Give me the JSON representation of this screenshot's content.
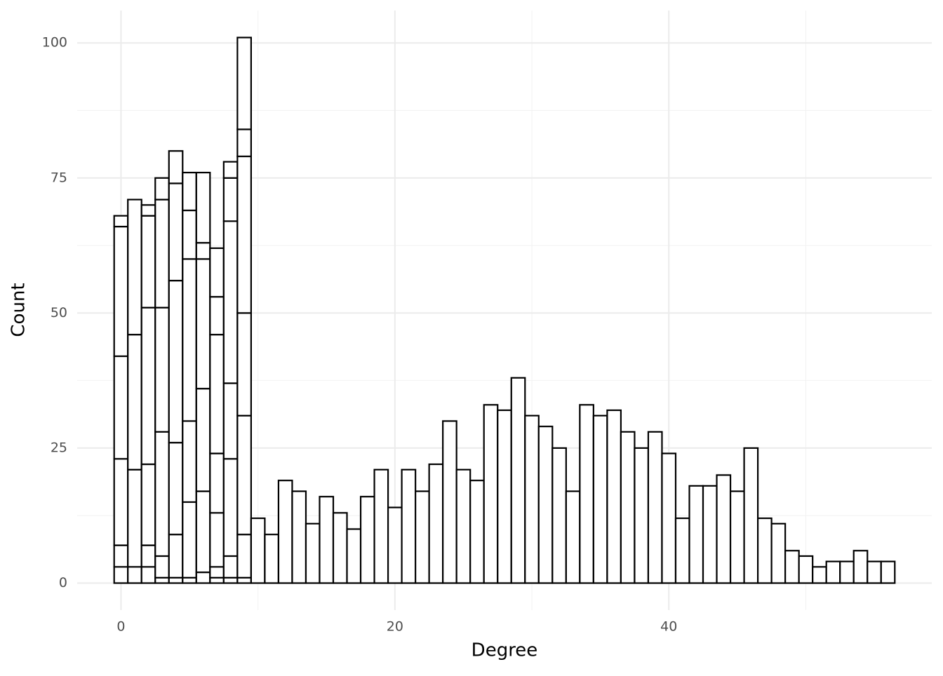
{
  "chart_data": {
    "type": "histogram",
    "x_label": "Degree",
    "y_label": "Count",
    "bins": [
      -0.5,
      0.5,
      1.5,
      2.5,
      3.5,
      4.5,
      5.5,
      6.5,
      7.5,
      8.5,
      9.5,
      10.5,
      11.5,
      12.5,
      13.5,
      14.5,
      15.5,
      16.5,
      17.5,
      18.5,
      19.5,
      20.5,
      21.5,
      22.5,
      23.5,
      24.5,
      25.5,
      26.5,
      27.5,
      28.5,
      29.5,
      30.5,
      31.5,
      32.5,
      33.5,
      34.5,
      35.5,
      36.5,
      37.5,
      38.5,
      39.5,
      40.5,
      41.5,
      42.5,
      43.5,
      44.5,
      45.5,
      46.5,
      47.5,
      48.5,
      49.5,
      50.5,
      51.5,
      52.5,
      53.5,
      54.5,
      55.5,
      56.5
    ],
    "counts": [
      [
        3,
        4,
        16,
        19,
        24,
        2
      ],
      [
        3,
        18,
        25,
        25
      ],
      [
        3,
        4,
        15,
        29,
        17,
        2
      ],
      [
        1,
        4,
        23,
        23,
        20,
        4
      ],
      [
        1,
        8,
        17,
        30,
        18,
        6
      ],
      [
        1,
        14,
        15,
        30,
        9,
        7
      ],
      [
        2,
        15,
        19,
        24,
        3,
        13
      ],
      [
        1,
        2,
        10,
        11,
        22,
        7,
        9
      ],
      [
        1,
        4,
        18,
        14,
        30,
        8,
        3
      ],
      [
        1,
        8,
        22,
        19,
        29,
        5,
        17
      ],
      [
        12
      ],
      [
        9
      ],
      [
        19
      ],
      [
        17
      ],
      [
        11
      ],
      [
        16
      ],
      [
        13
      ],
      [
        10
      ],
      [
        16
      ],
      [
        21
      ],
      [
        14
      ],
      [
        21
      ],
      [
        17
      ],
      [
        22
      ],
      [
        30
      ],
      [
        21
      ],
      [
        19
      ],
      [
        33
      ],
      [
        32
      ],
      [
        38
      ],
      [
        31
      ],
      [
        29
      ],
      [
        25
      ],
      [
        17
      ],
      [
        33
      ],
      [
        31
      ],
      [
        32
      ],
      [
        28
      ],
      [
        25
      ],
      [
        28
      ],
      [
        24
      ],
      [
        12
      ],
      [
        18
      ],
      [
        18
      ],
      [
        20
      ],
      [
        17
      ],
      [
        25
      ],
      [
        12
      ],
      [
        11
      ],
      [
        6
      ],
      [
        5
      ],
      [
        3
      ],
      [
        4
      ],
      [
        4
      ],
      [
        6
      ],
      [
        4
      ],
      [
        4
      ]
    ],
    "fill": "#ffffff",
    "stroke": "#000000",
    "xlim": [
      -3.2,
      59.2
    ],
    "ylim": [
      -5,
      106
    ],
    "xticks": [
      0,
      20,
      40
    ],
    "yticks": [
      0,
      25,
      50,
      75,
      100
    ],
    "x_minor_ticks": [
      10,
      30,
      50
    ],
    "y_minor_ticks": [
      12.5,
      37.5,
      62.5,
      87.5
    ],
    "grid": true
  }
}
